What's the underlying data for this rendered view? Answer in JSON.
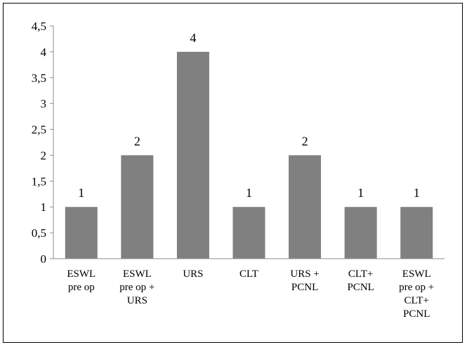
{
  "chart_data": {
    "type": "bar",
    "categories": [
      [
        "ESWL",
        "pre op"
      ],
      [
        "ESWL",
        "pre op +",
        "URS"
      ],
      [
        "URS"
      ],
      [
        "CLT"
      ],
      [
        "URS +",
        "PCNL"
      ],
      [
        "CLT+",
        "PCNL"
      ],
      [
        "ESWL",
        "pre op +",
        "CLT+",
        "PCNL"
      ]
    ],
    "values": [
      1,
      2,
      4,
      1,
      2,
      1,
      1
    ],
    "data_labels": [
      "1",
      "2",
      "4",
      "1",
      "2",
      "1",
      "1"
    ],
    "ylim": [
      0,
      4.5
    ],
    "yticks": [
      {
        "value": 0,
        "label": "0"
      },
      {
        "value": 0.5,
        "label": "0,5"
      },
      {
        "value": 1,
        "label": "1"
      },
      {
        "value": 1.5,
        "label": "1,5"
      },
      {
        "value": 2,
        "label": "2"
      },
      {
        "value": 2.5,
        "label": "2,5"
      },
      {
        "value": 3,
        "label": "3"
      },
      {
        "value": 3.5,
        "label": "3,5"
      },
      {
        "value": 4,
        "label": "4"
      },
      {
        "value": 4.5,
        "label": "4,5"
      }
    ],
    "grid": false,
    "legend": "none",
    "bar_color": "#808080",
    "title": "",
    "xlabel": "",
    "ylabel": ""
  }
}
